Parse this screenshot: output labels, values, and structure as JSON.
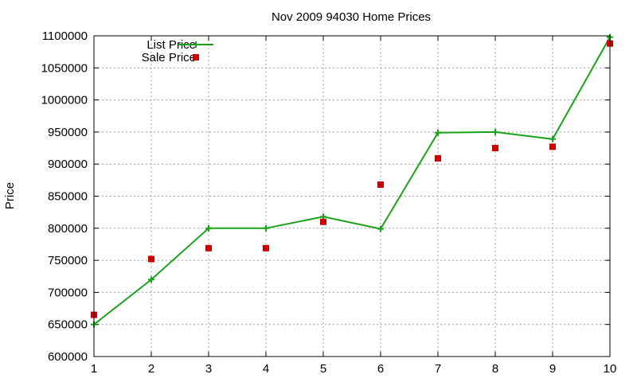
{
  "chart_data": {
    "type": "line",
    "title": "Nov 2009 94030 Home Prices",
    "xlabel": "",
    "ylabel": "Price",
    "x": [
      1,
      2,
      3,
      4,
      5,
      6,
      7,
      8,
      9,
      10
    ],
    "xlim": [
      1,
      10
    ],
    "ylim": [
      600000,
      1100000
    ],
    "x_ticks": [
      1,
      2,
      3,
      4,
      5,
      6,
      7,
      8,
      9,
      10
    ],
    "y_ticks": [
      600000,
      650000,
      700000,
      750000,
      800000,
      850000,
      900000,
      950000,
      1000000,
      1050000,
      1100000
    ],
    "grid": true,
    "legend_position": "top-left",
    "series": [
      {
        "name": "List Price",
        "style": "lines+points",
        "marker": "plus",
        "color": "#1aa31a",
        "values": [
          650000,
          720000,
          800000,
          800000,
          818000,
          799000,
          949000,
          950000,
          939000,
          1098000
        ]
      },
      {
        "name": "Sale Price",
        "style": "points",
        "marker": "square",
        "color": "#cc0000",
        "values": [
          665000,
          752000,
          769000,
          769000,
          810000,
          868000,
          909000,
          925000,
          927000,
          1088000
        ]
      }
    ]
  }
}
